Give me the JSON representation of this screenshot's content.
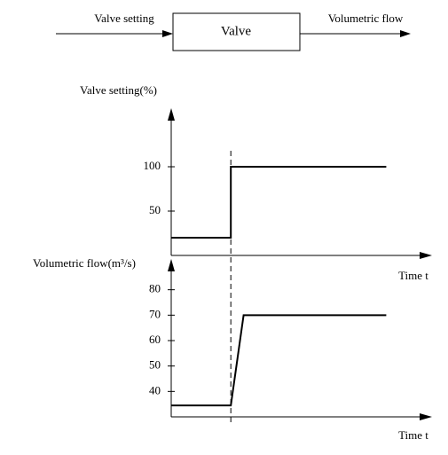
{
  "block": {
    "input": "Valve setting",
    "label": "Valve",
    "output": "Volumetric flow"
  },
  "chart_data": [
    {
      "type": "line",
      "y_label": "Valve setting(%)",
      "x_label": "Time t",
      "x": [
        0,
        2.8,
        2.8,
        10.1
      ],
      "series": [
        {
          "name": "Valve setting",
          "color": "#000000",
          "values": [
            20,
            20,
            100,
            100
          ]
        }
      ],
      "xlim": [
        0,
        12
      ],
      "ylim": [
        0,
        160
      ],
      "yticks": [
        50,
        100
      ]
    },
    {
      "type": "line",
      "y_label": "Volumetric flow(m³/s)",
      "x_label": "Time t",
      "x": [
        0,
        2.8,
        3.4,
        10.1
      ],
      "series": [
        {
          "name": "Volumetric flow",
          "color": "#000000",
          "values": [
            34.5,
            34.5,
            70,
            70
          ]
        }
      ],
      "xlim": [
        0,
        12
      ],
      "ylim": [
        30,
        90
      ],
      "yticks": [
        40,
        50,
        60,
        70,
        80
      ]
    }
  ]
}
